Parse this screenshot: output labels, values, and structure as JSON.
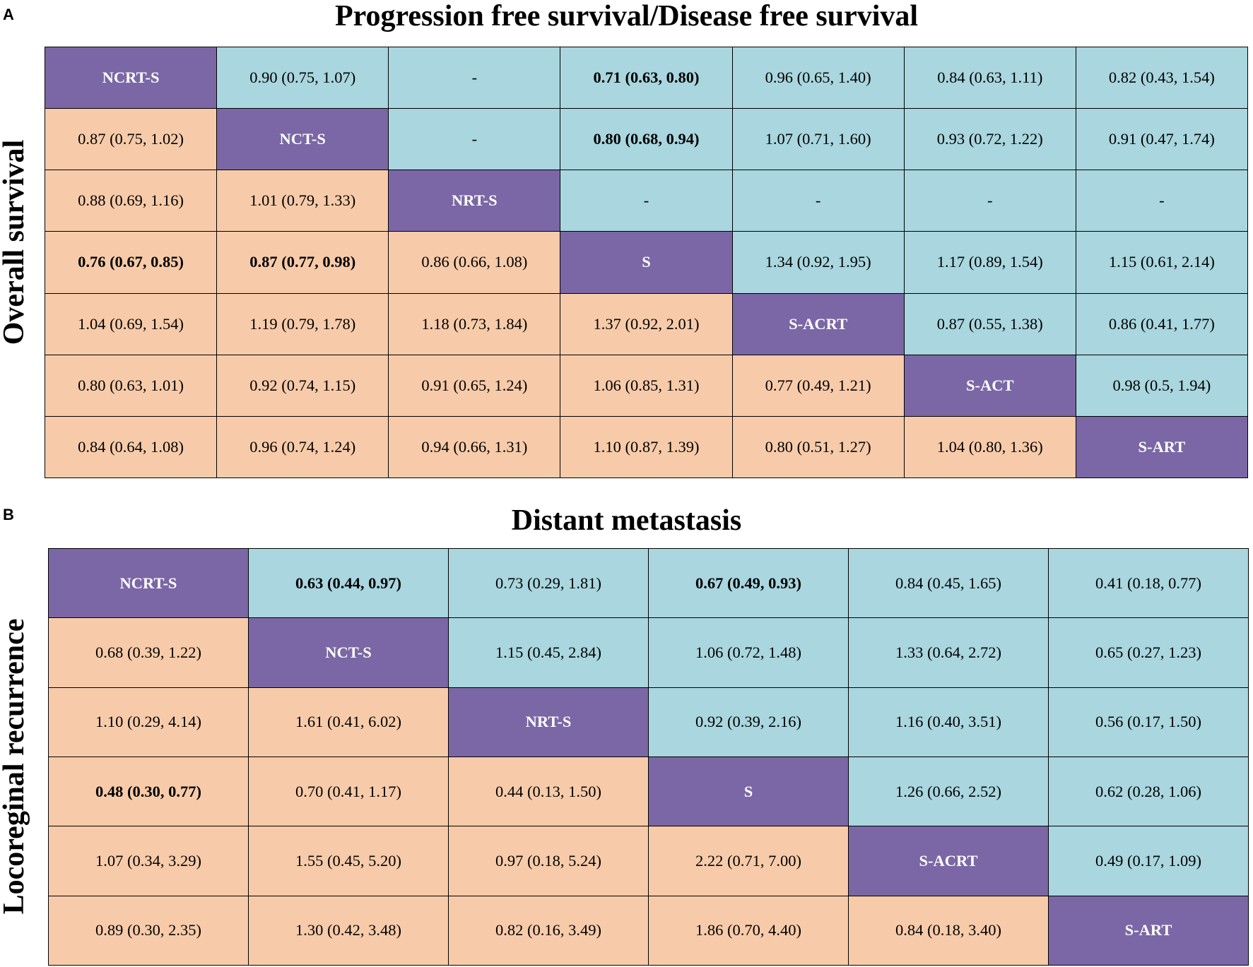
{
  "colors": {
    "diagonal": "#7b67a5",
    "upper": "#a9d6df",
    "lower": "#f7cba9"
  },
  "chart_data": [
    {
      "type": "table",
      "panel": "A",
      "title": "Progression free survival/Disease free survival",
      "side_label": "Overall survival",
      "treatments": [
        "NCRT-S",
        "NCT-S",
        "NRT-S",
        "S",
        "S-ACRT",
        "S-ACT",
        "S-ART"
      ],
      "rows": [
        [
          "NCRT-S",
          "0.90 (0.75, 1.07)",
          "-",
          "0.71 (0.63, 0.80)",
          "0.96 (0.65, 1.40)",
          "0.84 (0.63, 1.11)",
          "0.82 (0.43, 1.54)"
        ],
        [
          "0.87 (0.75, 1.02)",
          "NCT-S",
          "-",
          "0.80 (0.68, 0.94)",
          "1.07 (0.71, 1.60)",
          "0.93 (0.72, 1.22)",
          "0.91 (0.47, 1.74)"
        ],
        [
          "0.88 (0.69, 1.16)",
          "1.01 (0.79, 1.33)",
          "NRT-S",
          "-",
          "-",
          "-",
          "-"
        ],
        [
          "0.76 (0.67, 0.85)",
          "0.87 (0.77, 0.98)",
          "0.86 (0.66, 1.08)",
          "S",
          "1.34 (0.92, 1.95)",
          "1.17 (0.89, 1.54)",
          "1.15 (0.61, 2.14)"
        ],
        [
          "1.04 (0.69, 1.54)",
          "1.19 (0.79, 1.78)",
          "1.18 (0.73, 1.84)",
          "1.37 (0.92, 2.01)",
          "S-ACRT",
          "0.87 (0.55, 1.38)",
          "0.86 (0.41, 1.77)"
        ],
        [
          "0.80 (0.63, 1.01)",
          "0.92 (0.74, 1.15)",
          "0.91 (0.65, 1.24)",
          "1.06 (0.85, 1.31)",
          "0.77 (0.49, 1.21)",
          "S-ACT",
          "0.98 (0.5, 1.94)"
        ],
        [
          "0.84 (0.64, 1.08)",
          "0.96 (0.74, 1.24)",
          "0.94 (0.66, 1.31)",
          "1.10 (0.87, 1.39)",
          "0.80 (0.51, 1.27)",
          "1.04 (0.80, 1.36)",
          "S-ART"
        ]
      ],
      "bold_cells": [
        "0-3",
        "1-3",
        "3-0",
        "3-1"
      ]
    },
    {
      "type": "table",
      "panel": "B",
      "title": "Distant metastasis",
      "side_label": "Locoreginal recurrence",
      "treatments": [
        "NCRT-S",
        "NCT-S",
        "NRT-S",
        "S",
        "S-ACRT",
        "S-ART"
      ],
      "rows": [
        [
          "NCRT-S",
          "0.63 (0.44, 0.97)",
          "0.73 (0.29, 1.81)",
          "0.67 (0.49, 0.93)",
          "0.84 (0.45, 1.65)",
          "0.41 (0.18, 0.77)"
        ],
        [
          "0.68 (0.39, 1.22)",
          "NCT-S",
          "1.15 (0.45, 2.84)",
          "1.06 (0.72, 1.48)",
          "1.33 (0.64, 2.72)",
          "0.65 (0.27, 1.23)"
        ],
        [
          "1.10 (0.29, 4.14)",
          "1.61 (0.41, 6.02)",
          "NRT-S",
          "0.92 (0.39, 2.16)",
          "1.16 (0.40, 3.51)",
          "0.56 (0.17, 1.50)"
        ],
        [
          "0.48 (0.30, 0.77)",
          "0.70 (0.41, 1.17)",
          "0.44 (0.13, 1.50)",
          "S",
          "1.26 (0.66, 2.52)",
          "0.62 (0.28, 1.06)"
        ],
        [
          "1.07 (0.34, 3.29)",
          "1.55 (0.45, 5.20)",
          "0.97 (0.18, 5.24)",
          "2.22 (0.71, 7.00)",
          "S-ACRT",
          "0.49 (0.17, 1.09)"
        ],
        [
          "0.89 (0.30, 2.35)",
          "1.30 (0.42, 3.48)",
          "0.82 (0.16, 3.49)",
          "1.86 (0.70, 4.40)",
          "0.84 (0.18, 3.40)",
          "S-ART"
        ]
      ],
      "bold_cells": [
        "0-1",
        "0-3",
        "3-0"
      ]
    }
  ]
}
